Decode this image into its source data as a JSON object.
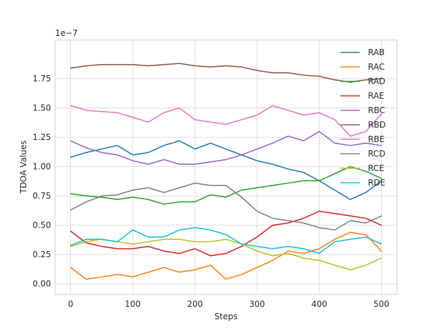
{
  "chart_data": {
    "type": "line",
    "title": "",
    "xlabel": "Steps",
    "ylabel": "TDOA Values",
    "scale_label": "1e−7",
    "xlim": [
      -25,
      525
    ],
    "ylim": [
      -0.09,
      2.08
    ],
    "x_ticks": [
      0,
      100,
      200,
      300,
      400,
      500
    ],
    "x_tick_labels": [
      "0",
      "100",
      "200",
      "300",
      "400",
      "500"
    ],
    "y_ticks": [
      0.0,
      0.25,
      0.5,
      0.75,
      1.0,
      1.25,
      1.5,
      1.75
    ],
    "y_tick_labels": [
      "0.00",
      "0.25",
      "0.50",
      "0.75",
      "1.00",
      "1.25",
      "1.50",
      "1.75"
    ],
    "grid": true,
    "legend_position": "upper-right",
    "x": [
      0,
      25,
      50,
      75,
      100,
      125,
      150,
      175,
      200,
      225,
      250,
      275,
      300,
      325,
      350,
      375,
      400,
      425,
      450,
      475,
      500
    ],
    "series": [
      {
        "name": "RAB",
        "color": "#1f77b4",
        "values": [
          1.08,
          1.12,
          1.15,
          1.18,
          1.1,
          1.12,
          1.18,
          1.22,
          1.15,
          1.2,
          1.15,
          1.1,
          1.05,
          1.02,
          0.98,
          0.95,
          0.88,
          0.8,
          0.72,
          0.78,
          0.88
        ]
      },
      {
        "name": "RAC",
        "color": "#ff7f0e",
        "values": [
          0.14,
          0.04,
          0.06,
          0.08,
          0.06,
          0.1,
          0.14,
          0.1,
          0.12,
          0.16,
          0.04,
          0.08,
          0.14,
          0.2,
          0.28,
          0.26,
          0.3,
          0.38,
          0.44,
          0.42,
          0.28
        ]
      },
      {
        "name": "RAD",
        "color": "#2ca02c",
        "values": [
          0.77,
          0.75,
          0.74,
          0.72,
          0.74,
          0.72,
          0.68,
          0.7,
          0.7,
          0.76,
          0.74,
          0.8,
          0.82,
          0.84,
          0.86,
          0.88,
          0.88,
          0.94,
          1.0,
          0.96,
          0.9
        ]
      },
      {
        "name": "RAE",
        "color": "#d62728",
        "values": [
          0.45,
          0.35,
          0.32,
          0.3,
          0.3,
          0.32,
          0.28,
          0.26,
          0.3,
          0.24,
          0.26,
          0.32,
          0.4,
          0.5,
          0.52,
          0.56,
          0.62,
          0.6,
          0.58,
          0.56,
          0.5
        ]
      },
      {
        "name": "RBC",
        "color": "#9467bd",
        "values": [
          1.22,
          1.16,
          1.12,
          1.1,
          1.05,
          1.02,
          1.06,
          1.02,
          1.02,
          1.04,
          1.06,
          1.1,
          1.15,
          1.2,
          1.26,
          1.22,
          1.3,
          1.2,
          1.18,
          1.2,
          1.18
        ]
      },
      {
        "name": "RBD",
        "color": "#8c564b",
        "values": [
          1.84,
          1.86,
          1.87,
          1.87,
          1.87,
          1.86,
          1.87,
          1.88,
          1.86,
          1.85,
          1.86,
          1.85,
          1.82,
          1.8,
          1.8,
          1.78,
          1.77,
          1.74,
          1.72,
          1.74,
          1.75
        ]
      },
      {
        "name": "RBE",
        "color": "#e377c2",
        "values": [
          1.52,
          1.48,
          1.47,
          1.46,
          1.42,
          1.38,
          1.46,
          1.5,
          1.4,
          1.38,
          1.36,
          1.4,
          1.44,
          1.52,
          1.48,
          1.44,
          1.46,
          1.4,
          1.26,
          1.3,
          1.45
        ]
      },
      {
        "name": "RCD",
        "color": "#7f7f7f",
        "values": [
          0.63,
          0.7,
          0.75,
          0.76,
          0.8,
          0.82,
          0.78,
          0.82,
          0.86,
          0.84,
          0.84,
          0.74,
          0.62,
          0.56,
          0.54,
          0.52,
          0.48,
          0.46,
          0.54,
          0.52,
          0.58
        ]
      },
      {
        "name": "RCE",
        "color": "#bcbd22",
        "values": [
          0.32,
          0.36,
          0.38,
          0.36,
          0.34,
          0.36,
          0.38,
          0.38,
          0.36,
          0.36,
          0.38,
          0.34,
          0.28,
          0.24,
          0.26,
          0.22,
          0.2,
          0.16,
          0.12,
          0.16,
          0.22
        ]
      },
      {
        "name": "RDE",
        "color": "#17becf",
        "values": [
          0.33,
          0.38,
          0.38,
          0.36,
          0.46,
          0.4,
          0.4,
          0.46,
          0.48,
          0.46,
          0.42,
          0.34,
          0.32,
          0.3,
          0.32,
          0.3,
          0.26,
          0.36,
          0.38,
          0.4,
          0.34
        ]
      }
    ]
  }
}
